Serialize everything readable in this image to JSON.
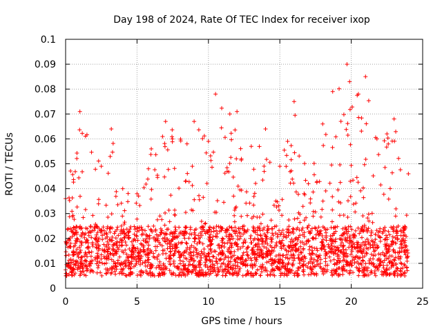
{
  "chart_data": {
    "type": "scatter",
    "title": "Day 198 of 2024, Rate Of TEC Index for receiver ixop",
    "xlabel": "GPS time / hours",
    "ylabel": "ROTI / TECUs",
    "xlim": [
      0,
      25
    ],
    "ylim": [
      0,
      0.1
    ],
    "xticks": [
      0,
      5,
      10,
      15,
      20,
      25
    ],
    "yticks": [
      0,
      0.01,
      0.02,
      0.03,
      0.04,
      0.05,
      0.06,
      0.07,
      0.08,
      0.09,
      0.1
    ],
    "xtick_labels": [
      "0",
      "5",
      "10",
      "15",
      "20",
      "25"
    ],
    "ytick_labels": [
      "0",
      "0.01",
      "0.02",
      "0.03",
      "0.04",
      "0.05",
      "0.06",
      "0.07",
      "0.08",
      "0.09",
      "0.1"
    ],
    "grid": true,
    "marker": "+",
    "color": "#ff0000",
    "data_x_range": [
      0,
      24
    ],
    "baseline_band": [
      0.005,
      0.025
    ],
    "envelope": [
      {
        "x": 0.0,
        "ymax": 0.036
      },
      {
        "x": 1.0,
        "ymax": 0.071
      },
      {
        "x": 2.5,
        "ymax": 0.049
      },
      {
        "x": 3.2,
        "ymax": 0.064
      },
      {
        "x": 4.0,
        "ymax": 0.04
      },
      {
        "x": 5.0,
        "ymax": 0.038
      },
      {
        "x": 5.8,
        "ymax": 0.048
      },
      {
        "x": 6.0,
        "ymax": 0.056
      },
      {
        "x": 7.0,
        "ymax": 0.067
      },
      {
        "x": 8.5,
        "ymax": 0.058
      },
      {
        "x": 9.0,
        "ymax": 0.067
      },
      {
        "x": 10.0,
        "ymax": 0.059
      },
      {
        "x": 10.5,
        "ymax": 0.078
      },
      {
        "x": 11.5,
        "ymax": 0.07
      },
      {
        "x": 12.0,
        "ymax": 0.071
      },
      {
        "x": 13.0,
        "ymax": 0.057
      },
      {
        "x": 14.0,
        "ymax": 0.064
      },
      {
        "x": 15.0,
        "ymax": 0.049
      },
      {
        "x": 16.0,
        "ymax": 0.075
      },
      {
        "x": 17.0,
        "ymax": 0.042
      },
      {
        "x": 18.0,
        "ymax": 0.066
      },
      {
        "x": 18.7,
        "ymax": 0.079
      },
      {
        "x": 19.7,
        "ymax": 0.09
      },
      {
        "x": 20.5,
        "ymax": 0.078
      },
      {
        "x": 21.0,
        "ymax": 0.085
      },
      {
        "x": 21.8,
        "ymax": 0.06
      },
      {
        "x": 22.5,
        "ymax": 0.062
      },
      {
        "x": 23.0,
        "ymax": 0.068
      },
      {
        "x": 24.0,
        "ymax": 0.046
      }
    ]
  }
}
